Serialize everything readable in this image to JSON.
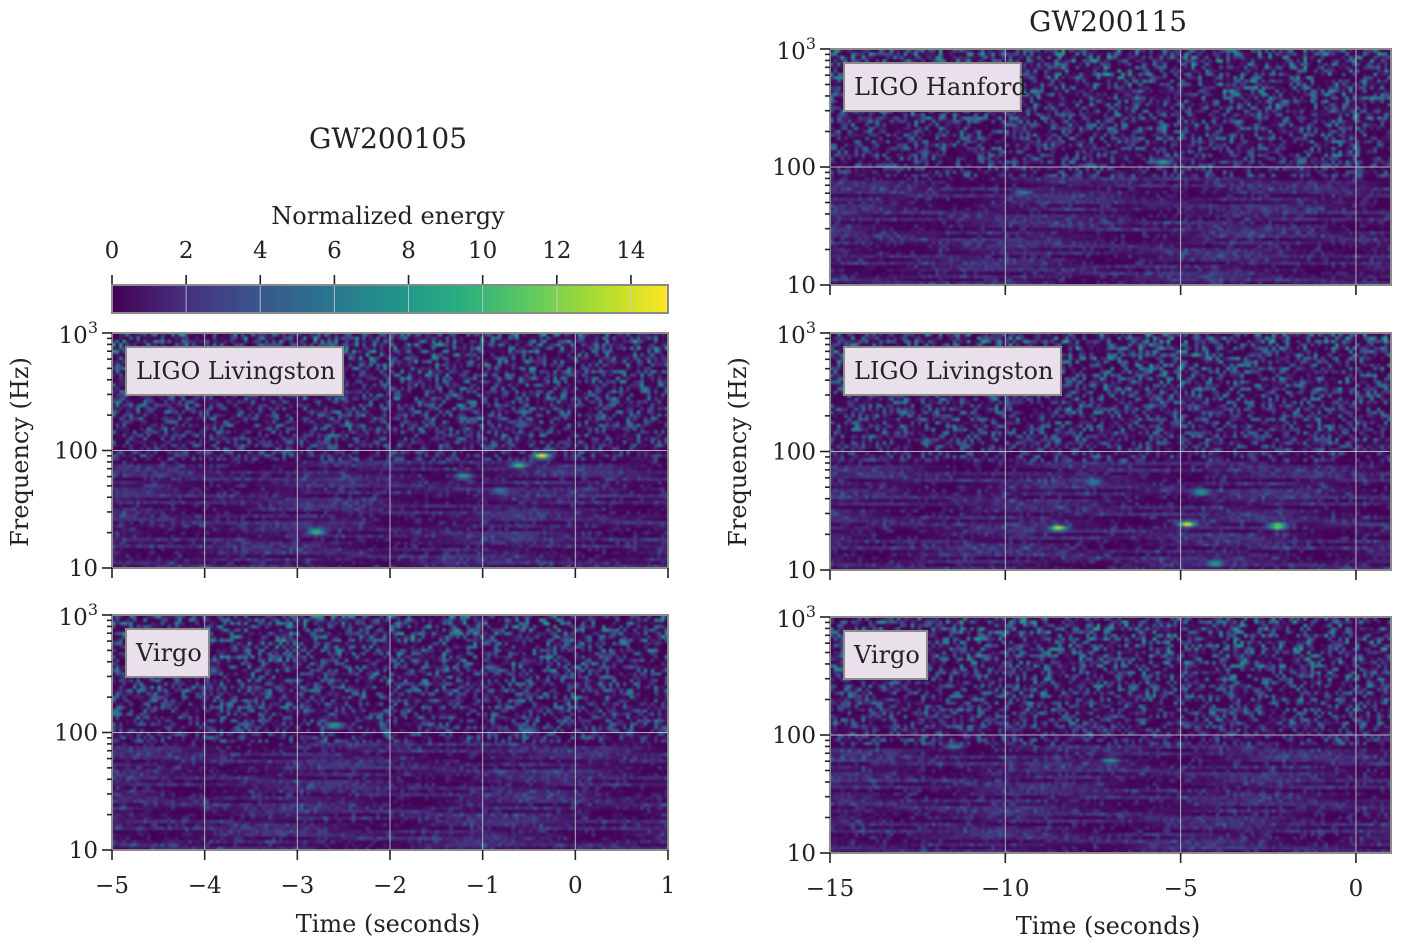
{
  "chart_data": [
    {
      "type": "heatmap",
      "event": "GW200105",
      "title": "GW200105",
      "xlabel": "Time (seconds)",
      "ylabel": "Frequency (Hz)",
      "x_range": [
        -5,
        1
      ],
      "y_range": [
        10,
        1000
      ],
      "y_scale": "log",
      "x_ticks": [
        "−5",
        "−4",
        "−3",
        "−2",
        "−1",
        "0",
        "1"
      ],
      "y_ticks": [
        "10",
        "100",
        "10^3"
      ],
      "colorbar": {
        "label": "Normalized energy",
        "range": [
          0,
          15
        ],
        "ticks": [
          "0",
          "2",
          "4",
          "6",
          "8",
          "10",
          "12",
          "14"
        ],
        "colors": [
          "#440154",
          "#472d7b",
          "#3b528b",
          "#2c728e",
          "#21918c",
          "#28ae80",
          "#5ec962",
          "#addc30",
          "#fde725"
        ]
      },
      "panels": [
        {
          "detector": "LIGO Livingston",
          "features": [
            {
              "t": -0.35,
              "f": 90,
              "energy": 15
            },
            {
              "t": -0.6,
              "f": 75,
              "energy": 11
            },
            {
              "t": -1.2,
              "f": 60,
              "energy": 9
            },
            {
              "t": -2.8,
              "f": 20,
              "energy": 12
            },
            {
              "t": -0.8,
              "f": 45,
              "energy": 8
            }
          ]
        },
        {
          "detector": "Virgo",
          "features": [
            {
              "t": -2.6,
              "f": 115,
              "energy": 10
            },
            {
              "t": -0.5,
              "f": 105,
              "energy": 7
            }
          ]
        }
      ]
    },
    {
      "type": "heatmap",
      "event": "GW200115",
      "title": "GW200115",
      "xlabel": "Time (seconds)",
      "ylabel": "Frequency (Hz)",
      "x_range": [
        -15,
        1
      ],
      "y_range": [
        10,
        1000
      ],
      "y_scale": "log",
      "x_ticks": [
        "−15",
        "−10",
        "−5",
        "0"
      ],
      "y_ticks": [
        "10",
        "100",
        "10^3"
      ],
      "panels": [
        {
          "detector": "LIGO Hanford",
          "features": [
            {
              "t": -5.5,
              "f": 110,
              "energy": 9
            },
            {
              "t": -9.5,
              "f": 60,
              "energy": 7
            }
          ]
        },
        {
          "detector": "LIGO Livingston",
          "features": [
            {
              "t": -8.5,
              "f": 22,
              "energy": 14
            },
            {
              "t": -4.8,
              "f": 24,
              "energy": 15
            },
            {
              "t": -2.2,
              "f": 23,
              "energy": 15
            },
            {
              "t": -4.4,
              "f": 45,
              "energy": 10
            },
            {
              "t": -7.5,
              "f": 55,
              "energy": 8
            },
            {
              "t": -4.0,
              "f": 11,
              "energy": 10
            }
          ]
        },
        {
          "detector": "Virgo",
          "features": [
            {
              "t": -7.0,
              "f": 60,
              "energy": 8
            },
            {
              "t": -11.5,
              "f": 80,
              "energy": 7
            }
          ]
        }
      ]
    }
  ]
}
